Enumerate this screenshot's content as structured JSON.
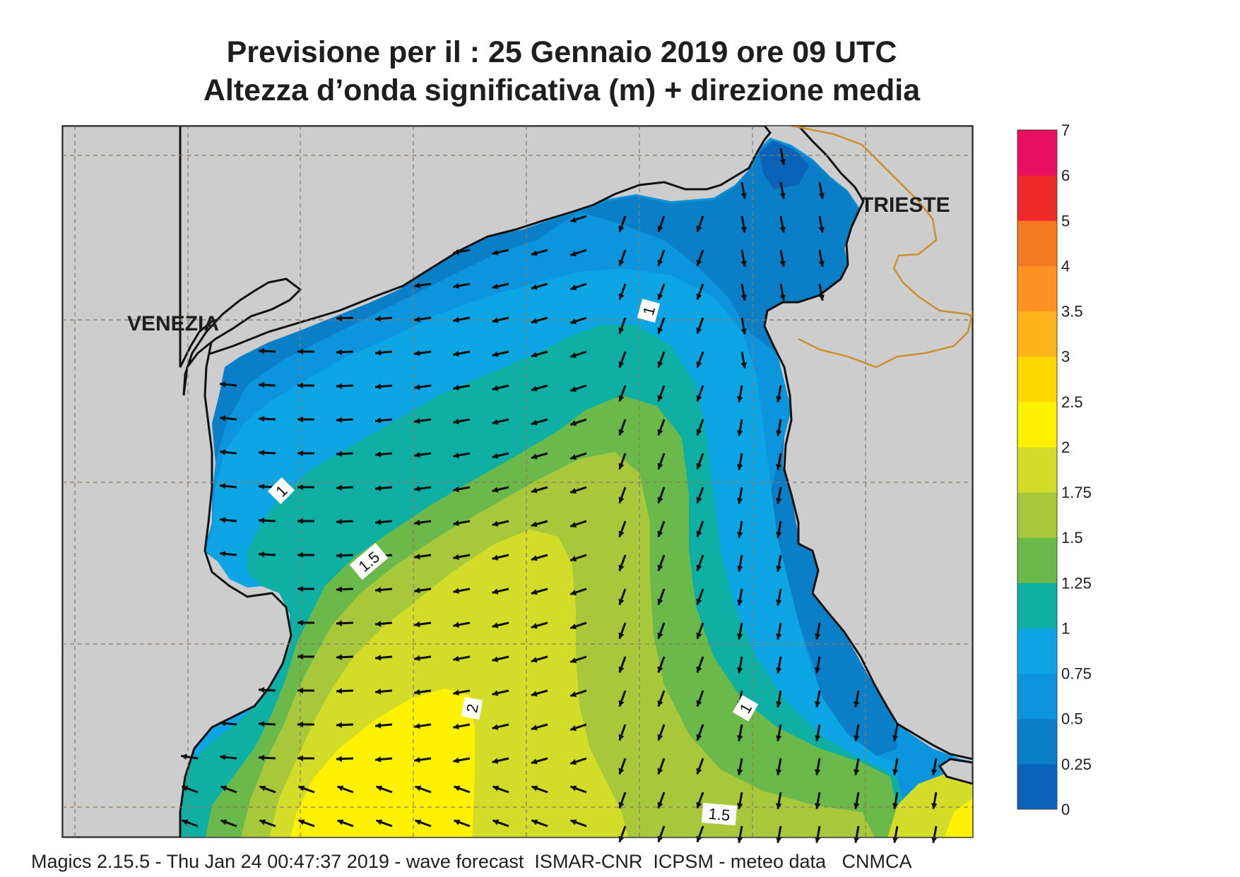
{
  "title_line1": "Previsione per il  :  25  Gennaio  2019   ore 09 UTC",
  "title_line2": "Altezza d’onda significativa (m) + direzione media",
  "footer": "Magics 2.15.5 - Thu Jan 24 00:47:37 2019 - wave forecast  ISMAR-CNR  ICPSM - meteo data   CNMCA",
  "cities": {
    "venezia": "VENEZIA",
    "trieste": "TRIESTE"
  },
  "contour_labels": {
    "a": "1",
    "b": "1",
    "c": "1.5",
    "d": "2",
    "e": "1",
    "f": "1.5"
  },
  "colorbar": {
    "labels": [
      "0",
      "0.25",
      "0.5",
      "0.75",
      "1",
      "1.25",
      "1.5",
      "1.75",
      "2",
      "2.5",
      "3",
      "3.5",
      "4",
      "5",
      "6",
      "7"
    ],
    "colors": [
      "#0a63b8",
      "#0a7fc8",
      "#0c95dc",
      "#0ea5e5",
      "#0fb0a3",
      "#6ab94a",
      "#a6c83a",
      "#d3dc28",
      "#fff200",
      "#ffd800",
      "#ffb41c",
      "#ff9222",
      "#f57a22",
      "#ee2a2a",
      "#e80f5e"
    ]
  },
  "colors": {
    "land": "#cdcdcd",
    "coast": "#111111",
    "border": "#c8902e",
    "grid": "#8a7a66"
  }
}
